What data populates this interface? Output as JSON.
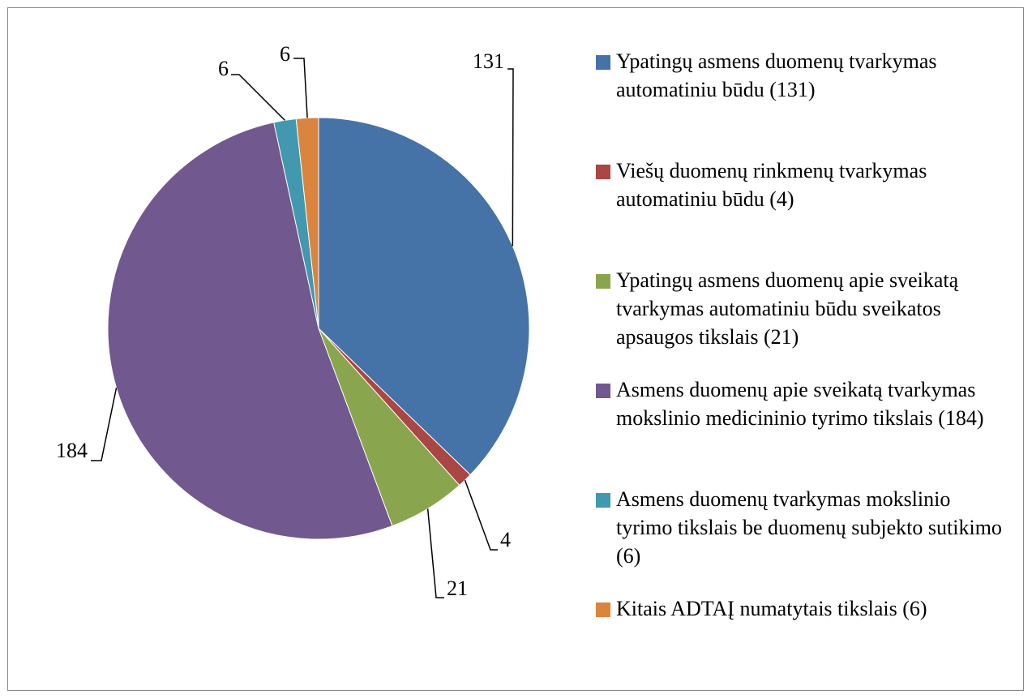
{
  "chart_data": {
    "type": "pie",
    "categories": [
      "Ypatingų asmens duomenų tvarkymas automatiniu būdu (131)",
      "Viešų duomenų rinkmenų tvarkymas automatiniu būdu (4)",
      "Ypatingų asmens duomenų apie sveikatą tvarkymas automatiniu būdu sveikatos apsaugos tikslais (21)",
      "Asmens duomenų apie sveikatą tvarkymas mokslinio medicininio tyrimo tikslais (184)",
      "Asmens duomenų tvarkymas mokslinio tyrimo tikslais be duomenų subjekto sutikimo (6)",
      "Kitais ADTAĮ numatytais tikslais (6)"
    ],
    "values": [
      131,
      4,
      21,
      184,
      6,
      6
    ],
    "colors": [
      "#4572a7",
      "#aa4643",
      "#89a54e",
      "#71588f",
      "#4198af",
      "#db843d"
    ],
    "legend": "right"
  }
}
